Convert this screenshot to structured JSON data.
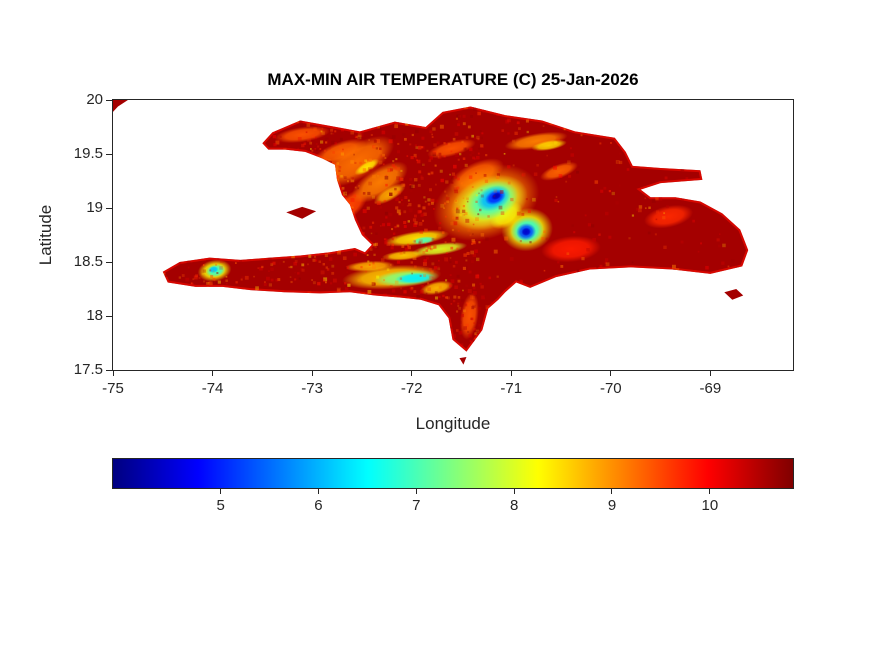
{
  "figure": {
    "background": "#ffffff",
    "text_color": "#262626"
  },
  "chart_data": {
    "type": "heatmap",
    "title": "MAX-MIN AIR TEMPERATURE (C) 25-Jan-2026",
    "xlabel": "Longitude",
    "ylabel": "Latitude",
    "xlim": [
      -75,
      -68.17
    ],
    "ylim": [
      17.5,
      20
    ],
    "xticks": [
      -75,
      -74,
      -73,
      -72,
      -71,
      -70,
      -69
    ],
    "yticks": [
      17.5,
      18,
      18.5,
      19,
      19.5,
      20
    ],
    "grid": false,
    "units": "C",
    "colormap": "jet",
    "colorbar": {
      "orientation": "horizontal",
      "position": "bottom",
      "range": [
        3.9,
        10.85
      ],
      "ticks": [
        5,
        6,
        7,
        8,
        9,
        10
      ]
    },
    "base_value": 10.6,
    "land_polygons": {
      "hispaniola": [
        [
          -73.5,
          19.6
        ],
        [
          -73.4,
          19.7
        ],
        [
          -73.12,
          19.81
        ],
        [
          -72.82,
          19.76
        ],
        [
          -72.52,
          19.71
        ],
        [
          -72.17,
          19.8
        ],
        [
          -71.86,
          19.75
        ],
        [
          -71.69,
          19.89
        ],
        [
          -71.41,
          19.94
        ],
        [
          -71.06,
          19.86
        ],
        [
          -70.69,
          19.81
        ],
        [
          -70.36,
          19.71
        ],
        [
          -69.96,
          19.65
        ],
        [
          -69.85,
          19.52
        ],
        [
          -69.78,
          19.39
        ],
        [
          -69.5,
          19.37
        ],
        [
          -69.1,
          19.35
        ],
        [
          -69.08,
          19.26
        ],
        [
          -69.5,
          19.23
        ],
        [
          -69.7,
          19.17
        ],
        [
          -69.6,
          19.1
        ],
        [
          -69.35,
          19.1
        ],
        [
          -69.1,
          19.06
        ],
        [
          -68.88,
          18.95
        ],
        [
          -68.7,
          18.8
        ],
        [
          -68.62,
          18.61
        ],
        [
          -68.68,
          18.46
        ],
        [
          -69.0,
          18.39
        ],
        [
          -69.38,
          18.43
        ],
        [
          -69.8,
          18.45
        ],
        [
          -70.21,
          18.43
        ],
        [
          -70.55,
          18.36
        ],
        [
          -70.81,
          18.26
        ],
        [
          -70.95,
          18.31
        ],
        [
          -71.06,
          18.22
        ],
        [
          -71.13,
          18.15
        ],
        [
          -71.23,
          18.07
        ],
        [
          -71.29,
          17.87
        ],
        [
          -71.45,
          17.67
        ],
        [
          -71.59,
          17.78
        ],
        [
          -71.63,
          17.98
        ],
        [
          -71.73,
          18.1
        ],
        [
          -71.91,
          18.15
        ],
        [
          -72.11,
          18.17
        ],
        [
          -72.37,
          18.19
        ],
        [
          -72.62,
          18.22
        ],
        [
          -72.92,
          18.21
        ],
        [
          -73.27,
          18.22
        ],
        [
          -73.62,
          18.24
        ],
        [
          -73.9,
          18.27
        ],
        [
          -74.17,
          18.27
        ],
        [
          -74.45,
          18.31
        ],
        [
          -74.5,
          18.41
        ],
        [
          -74.33,
          18.5
        ],
        [
          -74.03,
          18.54
        ],
        [
          -73.72,
          18.52
        ],
        [
          -73.42,
          18.54
        ],
        [
          -73.12,
          18.56
        ],
        [
          -72.82,
          18.59
        ],
        [
          -72.57,
          18.63
        ],
        [
          -72.47,
          18.59
        ],
        [
          -72.4,
          18.66
        ],
        [
          -72.5,
          18.75
        ],
        [
          -72.57,
          18.89
        ],
        [
          -72.62,
          19.03
        ],
        [
          -72.7,
          19.12
        ],
        [
          -72.75,
          19.26
        ],
        [
          -72.77,
          19.4
        ],
        [
          -72.9,
          19.46
        ],
        [
          -73.07,
          19.52
        ],
        [
          -73.27,
          19.54
        ],
        [
          -73.44,
          19.54
        ]
      ],
      "gonave": [
        [
          -73.26,
          18.96
        ],
        [
          -73.1,
          19.01
        ],
        [
          -72.96,
          18.97
        ],
        [
          -73.1,
          18.9
        ]
      ],
      "cuba_corner": [
        [
          -75.0,
          20.0
        ],
        [
          -74.85,
          20.0
        ],
        [
          -74.95,
          19.94
        ],
        [
          -75.0,
          19.89
        ]
      ],
      "saona": [
        [
          -68.86,
          18.22
        ],
        [
          -68.74,
          18.25
        ],
        [
          -68.67,
          18.19
        ],
        [
          -68.78,
          18.15
        ]
      ],
      "beata": [
        [
          -71.52,
          17.61
        ],
        [
          -71.45,
          17.62
        ],
        [
          -71.48,
          17.55
        ]
      ]
    },
    "cool_spots": [
      {
        "lon": -71.25,
        "lat": 19.05,
        "rx": 0.55,
        "ry": 0.33,
        "rot": -20,
        "value": 9.0
      },
      {
        "lon": -71.22,
        "lat": 19.05,
        "rx": 0.4,
        "ry": 0.24,
        "rot": -20,
        "value": 8.0
      },
      {
        "lon": -71.2,
        "lat": 19.07,
        "rx": 0.28,
        "ry": 0.17,
        "rot": -22,
        "value": 7.0
      },
      {
        "lon": -71.18,
        "lat": 19.09,
        "rx": 0.18,
        "ry": 0.11,
        "rot": -25,
        "value": 6.0
      },
      {
        "lon": -71.16,
        "lat": 19.1,
        "rx": 0.11,
        "ry": 0.065,
        "rot": -25,
        "value": 5.0
      },
      {
        "lon": -71.15,
        "lat": 19.11,
        "rx": 0.055,
        "ry": 0.032,
        "rot": -25,
        "value": 4.3
      },
      {
        "lon": -70.84,
        "lat": 18.8,
        "rx": 0.26,
        "ry": 0.2,
        "rot": -10,
        "value": 8.2
      },
      {
        "lon": -70.84,
        "lat": 18.79,
        "rx": 0.17,
        "ry": 0.13,
        "rot": -10,
        "value": 6.8
      },
      {
        "lon": -70.85,
        "lat": 18.78,
        "rx": 0.1,
        "ry": 0.08,
        "rot": -10,
        "value": 5.2
      },
      {
        "lon": -70.85,
        "lat": 18.78,
        "rx": 0.05,
        "ry": 0.04,
        "rot": -10,
        "value": 4.4
      },
      {
        "lon": -71.05,
        "lat": 18.93,
        "rx": 0.18,
        "ry": 0.1,
        "rot": -35,
        "value": 8.4
      },
      {
        "lon": -71.95,
        "lat": 18.72,
        "rx": 0.33,
        "ry": 0.065,
        "rot": -8,
        "value": 8.4
      },
      {
        "lon": -71.72,
        "lat": 18.62,
        "rx": 0.28,
        "ry": 0.055,
        "rot": -8,
        "value": 8.0
      },
      {
        "lon": -71.88,
        "lat": 18.7,
        "rx": 0.12,
        "ry": 0.035,
        "rot": -8,
        "value": 7.0
      },
      {
        "lon": -72.08,
        "lat": 18.56,
        "rx": 0.22,
        "ry": 0.045,
        "rot": -5,
        "value": 8.6
      },
      {
        "lon": -72.2,
        "lat": 18.36,
        "rx": 0.5,
        "ry": 0.11,
        "rot": -4,
        "value": 8.6
      },
      {
        "lon": -72.05,
        "lat": 18.35,
        "rx": 0.33,
        "ry": 0.075,
        "rot": -4,
        "value": 7.4
      },
      {
        "lon": -71.97,
        "lat": 18.35,
        "rx": 0.2,
        "ry": 0.05,
        "rot": -4,
        "value": 6.4
      },
      {
        "lon": -72.42,
        "lat": 18.46,
        "rx": 0.25,
        "ry": 0.05,
        "rot": -3,
        "value": 8.8
      },
      {
        "lon": -73.98,
        "lat": 18.42,
        "rx": 0.17,
        "ry": 0.1,
        "rot": -10,
        "value": 8.2
      },
      {
        "lon": -73.97,
        "lat": 18.42,
        "rx": 0.1,
        "ry": 0.06,
        "rot": -10,
        "value": 6.9
      },
      {
        "lon": -73.99,
        "lat": 18.43,
        "rx": 0.05,
        "ry": 0.032,
        "rot": -10,
        "value": 6.1
      },
      {
        "lon": -72.55,
        "lat": 19.43,
        "rx": 0.42,
        "ry": 0.16,
        "rot": -30,
        "value": 9.2
      },
      {
        "lon": -72.32,
        "lat": 19.24,
        "rx": 0.32,
        "ry": 0.13,
        "rot": -32,
        "value": 9.1
      },
      {
        "lon": -72.72,
        "lat": 19.52,
        "rx": 0.28,
        "ry": 0.09,
        "rot": -20,
        "value": 9.3
      },
      {
        "lon": -72.45,
        "lat": 19.38,
        "rx": 0.14,
        "ry": 0.045,
        "rot": -30,
        "value": 8.4
      },
      {
        "lon": -72.22,
        "lat": 19.13,
        "rx": 0.18,
        "ry": 0.06,
        "rot": -30,
        "value": 8.8
      },
      {
        "lon": -73.1,
        "lat": 19.68,
        "rx": 0.28,
        "ry": 0.07,
        "rot": -8,
        "value": 9.4
      },
      {
        "lon": -70.75,
        "lat": 19.62,
        "rx": 0.32,
        "ry": 0.07,
        "rot": -10,
        "value": 9.1
      },
      {
        "lon": -70.62,
        "lat": 19.58,
        "rx": 0.18,
        "ry": 0.045,
        "rot": -10,
        "value": 8.5
      },
      {
        "lon": -70.52,
        "lat": 19.34,
        "rx": 0.2,
        "ry": 0.065,
        "rot": -20,
        "value": 9.3
      },
      {
        "lon": -71.6,
        "lat": 19.55,
        "rx": 0.25,
        "ry": 0.07,
        "rot": -15,
        "value": 9.4
      },
      {
        "lon": -70.4,
        "lat": 18.62,
        "rx": 0.3,
        "ry": 0.12,
        "rot": -5,
        "value": 9.8
      },
      {
        "lon": -71.75,
        "lat": 18.26,
        "rx": 0.17,
        "ry": 0.06,
        "rot": -12,
        "value": 8.7
      },
      {
        "lon": -71.42,
        "lat": 18.0,
        "rx": 0.09,
        "ry": 0.22,
        "rot": 8,
        "value": 9.4
      },
      {
        "lon": -72.62,
        "lat": 19.02,
        "rx": 0.22,
        "ry": 0.1,
        "rot": -42,
        "value": 9.5
      },
      {
        "lon": -69.42,
        "lat": 18.92,
        "rx": 0.25,
        "ry": 0.1,
        "rot": -12,
        "value": 9.7
      },
      {
        "lon": -71.35,
        "lat": 19.3,
        "rx": 0.3,
        "ry": 0.12,
        "rot": -25,
        "value": 9.3
      }
    ]
  }
}
